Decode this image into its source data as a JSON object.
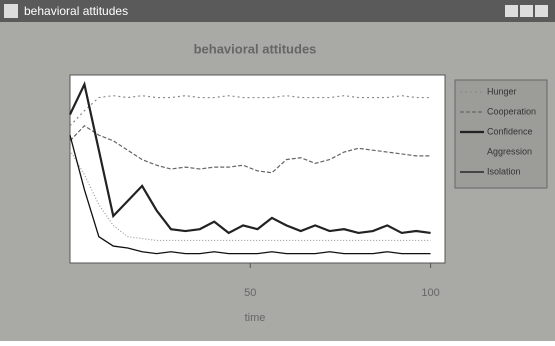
{
  "window_title": "behavioral attitudes",
  "chart_data": {
    "type": "line",
    "title": "behavioral attitudes",
    "x_label": "time",
    "x": [
      0,
      4,
      8,
      12,
      16,
      20,
      24,
      28,
      32,
      36,
      40,
      44,
      48,
      52,
      56,
      60,
      64,
      68,
      72,
      76,
      80,
      84,
      88,
      92,
      96,
      100
    ],
    "xlim": [
      0,
      104
    ],
    "xticks": [
      50,
      100
    ],
    "ylim": [
      0,
      1
    ],
    "series": [
      {
        "name": "Hunger",
        "color": "#8a8a8a",
        "dash": "2 3",
        "width": 1.2,
        "values": [
          0.73,
          0.81,
          0.88,
          0.89,
          0.88,
          0.89,
          0.88,
          0.88,
          0.89,
          0.88,
          0.88,
          0.89,
          0.88,
          0.88,
          0.88,
          0.89,
          0.88,
          0.88,
          0.88,
          0.89,
          0.88,
          0.88,
          0.88,
          0.89,
          0.88,
          0.88
        ]
      },
      {
        "name": "Cooperation",
        "color": "#666666",
        "dash": "4 2",
        "width": 1.2,
        "values": [
          0.65,
          0.73,
          0.68,
          0.65,
          0.6,
          0.55,
          0.52,
          0.5,
          0.51,
          0.5,
          0.51,
          0.51,
          0.52,
          0.49,
          0.48,
          0.55,
          0.56,
          0.53,
          0.55,
          0.59,
          0.61,
          0.6,
          0.59,
          0.58,
          0.57,
          0.57
        ]
      },
      {
        "name": "Confidence",
        "color": "#222222",
        "dash": "",
        "width": 2.2,
        "values": [
          0.79,
          0.95,
          0.6,
          0.25,
          0.33,
          0.41,
          0.28,
          0.18,
          0.17,
          0.18,
          0.22,
          0.16,
          0.2,
          0.18,
          0.24,
          0.2,
          0.17,
          0.2,
          0.17,
          0.18,
          0.16,
          0.17,
          0.2,
          0.16,
          0.17,
          0.16
        ]
      },
      {
        "name": "Aggression",
        "color": "#999999",
        "dash": "1 2",
        "width": 1.2,
        "values": [
          0.6,
          0.47,
          0.31,
          0.2,
          0.14,
          0.13,
          0.12,
          0.12,
          0.12,
          0.12,
          0.12,
          0.12,
          0.12,
          0.12,
          0.12,
          0.12,
          0.12,
          0.12,
          0.12,
          0.12,
          0.12,
          0.12,
          0.12,
          0.12,
          0.12,
          0.12
        ]
      },
      {
        "name": "Isolation",
        "color": "#111111",
        "dash": "",
        "width": 1.3,
        "values": [
          0.68,
          0.39,
          0.14,
          0.09,
          0.08,
          0.06,
          0.05,
          0.06,
          0.05,
          0.05,
          0.06,
          0.05,
          0.05,
          0.05,
          0.06,
          0.05,
          0.05,
          0.05,
          0.06,
          0.05,
          0.05,
          0.05,
          0.06,
          0.05,
          0.05,
          0.05
        ]
      }
    ]
  }
}
